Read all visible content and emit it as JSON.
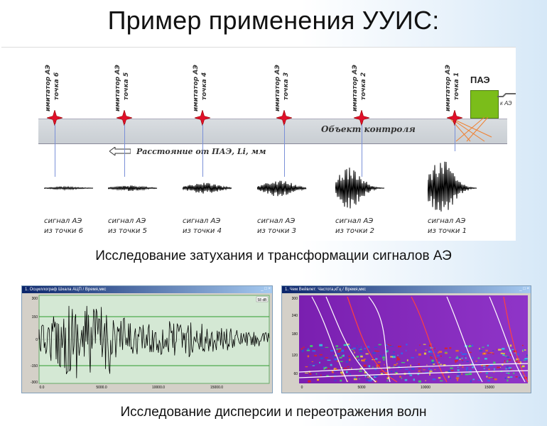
{
  "title": "Пример применения УУИС:",
  "diagram": {
    "imitators": [
      {
        "line1": "имитатор АЭ",
        "line2": "точка 6"
      },
      {
        "line1": "имитатор АЭ",
        "line2": "точка 5"
      },
      {
        "line1": "имитатор АЭ",
        "line2": "точка 4"
      },
      {
        "line1": "имитатор АЭ",
        "line2": "точка 3"
      },
      {
        "line1": "имитатор АЭ",
        "line2": "точка 2"
      },
      {
        "line1": "имитатор АЭ",
        "line2": "точка 1"
      }
    ],
    "object_label": "Объект контроля",
    "distance_label": "Расстояние от ПАЭ, Li, мм",
    "pae_label": "ПАЭ",
    "pae_sub": "к АЭ",
    "signals": [
      {
        "line1": "сигнал АЭ",
        "line2": "из точки 6"
      },
      {
        "line1": "сигнал АЭ",
        "line2": "из точки 5"
      },
      {
        "line1": "сигнал АЭ",
        "line2": "из точки 4"
      },
      {
        "line1": "сигнал АЭ",
        "line2": "из точки 3"
      },
      {
        "line1": "сигнал АЭ",
        "line2": "из точки 2"
      },
      {
        "line1": "сигнал АЭ",
        "line2": "из точки 1"
      }
    ]
  },
  "subtitle1": "Исследование затухания и трансформации сигналов АЭ",
  "subtitle2": "Исследование дисперсии и переотражения волн",
  "window_left": {
    "title": "1. Осциллограф Шкала АЦП / Время,мкс",
    "badge": "58 dB",
    "y_ticks": [
      "300",
      "150",
      "0",
      "-150",
      "-300"
    ],
    "x_ticks": [
      "0.0",
      "5000.0",
      "10000.0",
      "15000.0"
    ]
  },
  "window_right": {
    "title": "1. Чем Вейвлет: Частота,кГц / Время,мкс",
    "y_ticks": [
      "300",
      "240",
      "180",
      "120",
      "60"
    ],
    "x_ticks": [
      "0",
      "5000",
      "10000",
      "15000"
    ]
  }
}
